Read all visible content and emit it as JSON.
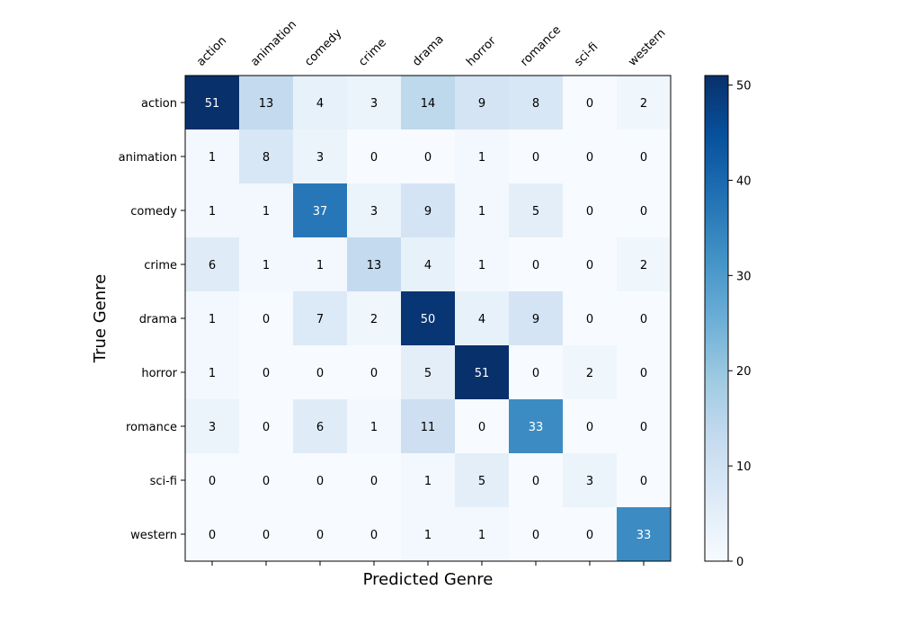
{
  "chart_data": {
    "type": "heatmap",
    "title": "",
    "xlabel": "Predicted Genre",
    "ylabel": "True Genre",
    "x_categories": [
      "action",
      "animation",
      "comedy",
      "crime",
      "drama",
      "horror",
      "romance",
      "sci-fi",
      "western"
    ],
    "y_categories": [
      "action",
      "animation",
      "comedy",
      "crime",
      "drama",
      "horror",
      "romance",
      "sci-fi",
      "western"
    ],
    "values": [
      [
        51,
        13,
        4,
        3,
        14,
        9,
        8,
        0,
        2
      ],
      [
        1,
        8,
        3,
        0,
        0,
        1,
        0,
        0,
        0
      ],
      [
        1,
        1,
        37,
        3,
        9,
        1,
        5,
        0,
        0
      ],
      [
        6,
        1,
        1,
        13,
        4,
        1,
        0,
        0,
        2
      ],
      [
        1,
        0,
        7,
        2,
        50,
        4,
        9,
        0,
        0
      ],
      [
        1,
        0,
        0,
        0,
        5,
        51,
        0,
        2,
        0
      ],
      [
        3,
        0,
        6,
        1,
        11,
        0,
        33,
        0,
        0
      ],
      [
        0,
        0,
        0,
        0,
        1,
        5,
        0,
        3,
        0
      ],
      [
        0,
        0,
        0,
        0,
        1,
        1,
        0,
        0,
        33
      ]
    ],
    "colormap": "Blues",
    "colorbar": {
      "range": [
        0,
        51
      ],
      "ticks": [
        0,
        10,
        20,
        30,
        40,
        50
      ],
      "tick_labels": [
        "0",
        "10",
        "20",
        "30",
        "40",
        "50"
      ]
    },
    "x_ticks_position": "top",
    "x_tick_rotation_deg": 45,
    "grid": false
  }
}
